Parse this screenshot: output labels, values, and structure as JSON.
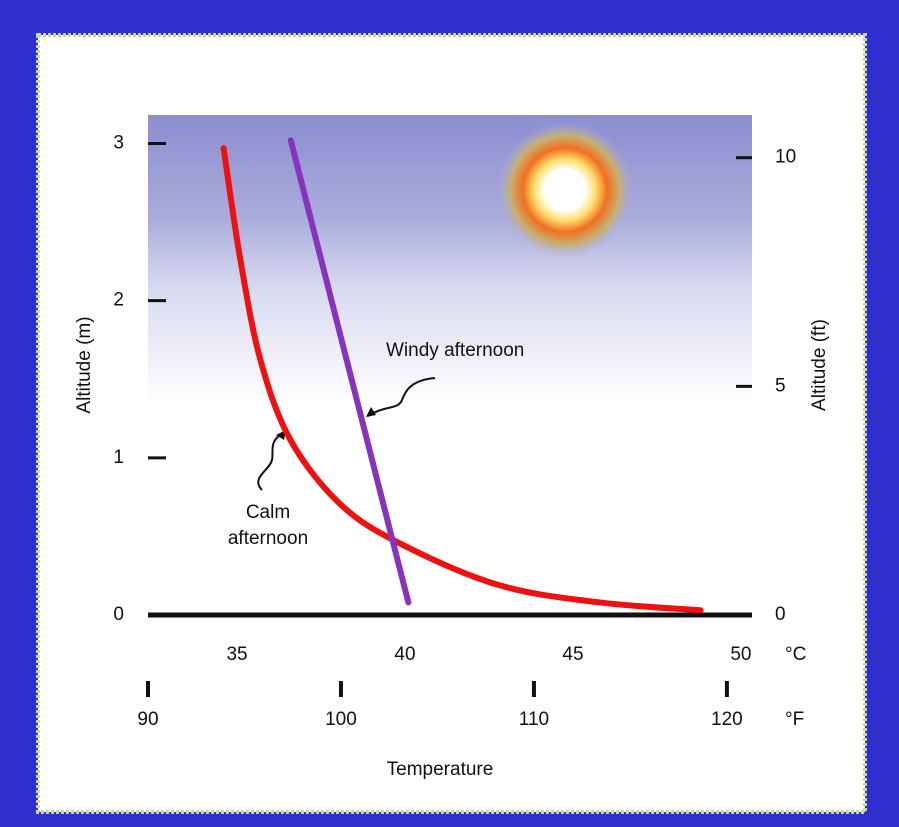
{
  "chart_data": {
    "type": "line",
    "x_label": "Temperature",
    "x_unit": "°C",
    "x2_unit": "°F",
    "y_label": "Altitude (m)",
    "y2_label": "Altitude (ft)",
    "xlim": [
      32.35,
      50.33
    ],
    "xticks": [
      35,
      40,
      45,
      50
    ],
    "x2lim": [
      90,
      121.3
    ],
    "x2ticks": [
      90,
      100,
      110,
      120
    ],
    "ylim": [
      0,
      3.2
    ],
    "yticks": [
      0,
      1,
      2,
      3
    ],
    "y2lim": [
      0,
      11
    ],
    "y2ticks": [
      0,
      5,
      10
    ],
    "series": [
      {
        "name": "Calm afternoon",
        "color": "#ee1111",
        "x": [
          34.6,
          35.1,
          35.7,
          36.6,
          38.1,
          39.9,
          42.8,
          45.8,
          48.8
        ],
        "values": [
          2.97,
          2.26,
          1.62,
          1.11,
          0.7,
          0.45,
          0.19,
          0.08,
          0.03
        ]
      },
      {
        "name": "Windy afternoon",
        "color": "#8833bb",
        "x": [
          36.6,
          40.1
        ],
        "values": [
          3.02,
          0.08
        ]
      }
    ]
  }
}
